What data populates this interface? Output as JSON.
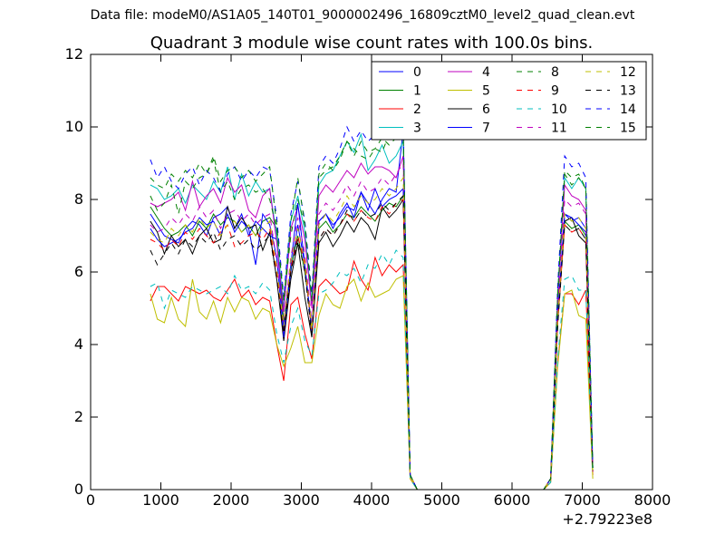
{
  "suptitle": "Data file: modeM0/AS1A05_140T01_9000002496_16809cztM0_level2_quad_clean.evt",
  "chart_data": {
    "type": "line",
    "title": "Quadrant 3 module wise count rates with 100.0s bins.",
    "xlabel": "",
    "ylabel": "",
    "x_offset_label": "+2.79223e8",
    "xlim": [
      0,
      8000
    ],
    "ylim": [
      0,
      12
    ],
    "x_ticks": [
      0,
      1000,
      2000,
      3000,
      4000,
      5000,
      6000,
      7000,
      8000
    ],
    "y_ticks": [
      0,
      2,
      4,
      6,
      8,
      10,
      12
    ],
    "grid": false,
    "legend_placement": "top-right",
    "legend_columns": 4,
    "x": [
      850,
      950,
      1050,
      1150,
      1250,
      1350,
      1450,
      1550,
      1650,
      1750,
      1850,
      1950,
      2050,
      2150,
      2250,
      2350,
      2450,
      2550,
      2650,
      2750,
      2850,
      2950,
      3050,
      3150,
      3250,
      3350,
      3450,
      3550,
      3650,
      3750,
      3850,
      3950,
      4050,
      4150,
      4250,
      4350,
      4450,
      4550,
      4650,
      4750,
      4850,
      4950,
      5050,
      5150,
      5250,
      5350,
      5450,
      5550,
      5650,
      5750,
      5850,
      5950,
      6050,
      6150,
      6250,
      6350,
      6450,
      6550,
      6650,
      6750,
      6850,
      6950,
      7050,
      7150
    ],
    "series": [
      {
        "name": "0",
        "color": "#0000ff",
        "dash": "solid",
        "values": [
          7.6,
          7.3,
          7.0,
          6.9,
          6.8,
          7.2,
          7.4,
          7.3,
          7.0,
          7.5,
          7.6,
          7.8,
          7.2,
          7.6,
          7.0,
          7.4,
          7.2,
          7.0,
          6.9,
          4.4,
          6.0,
          7.3,
          6.2,
          4.4,
          7.4,
          7.6,
          7.3,
          7.5,
          7.8,
          7.7,
          8.2,
          7.9,
          7.6,
          8.0,
          8.3,
          8.2,
          9.9,
          0.4,
          0.0,
          0.0,
          0.0,
          0.0,
          0.0,
          0.0,
          0.0,
          0.0,
          0.0,
          0.0,
          0.0,
          0.0,
          0.0,
          0.0,
          0.0,
          0.0,
          0.0,
          0.0,
          0.0,
          0.3,
          4.8,
          7.6,
          7.4,
          7.5,
          7.2,
          0.6
        ]
      },
      {
        "name": "1",
        "color": "#008000",
        "dash": "solid",
        "values": [
          7.8,
          7.5,
          7.2,
          7.0,
          7.1,
          7.3,
          7.0,
          7.4,
          7.2,
          7.6,
          7.3,
          7.5,
          7.4,
          7.1,
          7.3,
          7.0,
          7.4,
          7.5,
          7.2,
          4.6,
          6.1,
          7.0,
          6.0,
          4.5,
          7.2,
          7.4,
          7.1,
          7.3,
          7.6,
          7.5,
          7.8,
          7.6,
          7.4,
          7.7,
          7.9,
          7.8,
          8.1,
          0.4,
          0.0,
          0.0,
          0.0,
          0.0,
          0.0,
          0.0,
          0.0,
          0.0,
          0.0,
          0.0,
          0.0,
          0.0,
          0.0,
          0.0,
          0.0,
          0.0,
          0.0,
          0.0,
          0.0,
          0.3,
          4.6,
          7.4,
          7.2,
          7.3,
          7.0,
          0.5
        ]
      },
      {
        "name": "2",
        "color": "#ff0000",
        "dash": "solid",
        "values": [
          5.2,
          5.6,
          5.6,
          5.4,
          5.2,
          5.6,
          5.5,
          5.4,
          5.5,
          5.3,
          5.2,
          5.5,
          5.8,
          5.3,
          5.5,
          5.1,
          5.3,
          5.2,
          4.0,
          3.0,
          5.1,
          5.3,
          4.3,
          3.6,
          5.6,
          5.8,
          5.6,
          5.4,
          5.5,
          6.3,
          5.8,
          5.5,
          6.4,
          5.9,
          6.2,
          6.0,
          6.2,
          0.3,
          0.0,
          0.0,
          0.0,
          0.0,
          0.0,
          0.0,
          0.0,
          0.0,
          0.0,
          0.0,
          0.0,
          0.0,
          0.0,
          0.0,
          0.0,
          0.0,
          0.0,
          0.0,
          0.0,
          0.2,
          3.5,
          5.4,
          5.4,
          5.1,
          5.5,
          0.4
        ]
      },
      {
        "name": "3",
        "color": "#00bfbf",
        "dash": "solid",
        "values": [
          8.4,
          8.3,
          8.0,
          8.1,
          8.3,
          7.9,
          8.4,
          8.2,
          8.0,
          8.5,
          8.2,
          8.9,
          8.0,
          8.7,
          8.1,
          8.5,
          8.2,
          8.3,
          7.0,
          5.0,
          7.4,
          8.1,
          7.1,
          5.1,
          8.4,
          8.7,
          8.8,
          9.2,
          9.6,
          9.3,
          9.8,
          8.8,
          9.1,
          9.5,
          9.0,
          9.2,
          9.6,
          0.4,
          0.0,
          0.0,
          0.0,
          0.0,
          0.0,
          0.0,
          0.0,
          0.0,
          0.0,
          0.0,
          0.0,
          0.0,
          0.0,
          0.0,
          0.0,
          0.0,
          0.0,
          0.0,
          0.0,
          0.3,
          5.4,
          8.6,
          8.3,
          8.6,
          8.3,
          0.6
        ]
      },
      {
        "name": "4",
        "color": "#bf00bf",
        "dash": "solid",
        "values": [
          7.9,
          7.8,
          7.9,
          8.0,
          8.2,
          7.7,
          8.5,
          7.8,
          8.1,
          8.3,
          7.9,
          8.6,
          8.2,
          8.4,
          7.7,
          7.5,
          8.1,
          8.3,
          6.8,
          4.9,
          7.2,
          7.8,
          6.9,
          5.0,
          8.1,
          8.4,
          8.2,
          8.5,
          8.8,
          8.6,
          9.0,
          8.7,
          8.9,
          8.9,
          8.8,
          8.6,
          9.2,
          0.4,
          0.0,
          0.0,
          0.0,
          0.0,
          0.0,
          0.0,
          0.0,
          0.0,
          0.0,
          0.0,
          0.0,
          0.0,
          0.0,
          0.0,
          0.0,
          0.0,
          0.0,
          0.0,
          0.0,
          0.3,
          5.2,
          8.4,
          8.1,
          8.0,
          7.7,
          0.5
        ]
      },
      {
        "name": "5",
        "color": "#bfbf00",
        "dash": "solid",
        "values": [
          5.4,
          4.7,
          4.6,
          5.3,
          4.7,
          4.5,
          5.8,
          4.9,
          4.7,
          5.2,
          4.6,
          5.3,
          4.9,
          5.3,
          5.2,
          4.7,
          5.0,
          4.9,
          4.0,
          3.4,
          3.9,
          4.5,
          3.5,
          3.5,
          4.8,
          5.4,
          5.1,
          5.0,
          5.6,
          5.8,
          5.2,
          5.7,
          5.3,
          5.4,
          5.5,
          5.8,
          5.9,
          0.3,
          0.0,
          0.0,
          0.0,
          0.0,
          0.0,
          0.0,
          0.0,
          0.0,
          0.0,
          0.0,
          0.0,
          0.0,
          0.0,
          0.0,
          0.0,
          0.0,
          0.0,
          0.0,
          0.0,
          0.2,
          3.4,
          5.4,
          5.5,
          4.8,
          4.7,
          0.3
        ]
      },
      {
        "name": "6",
        "color": "#000000",
        "dash": "solid",
        "values": [
          7.4,
          7.1,
          6.5,
          7.0,
          6.7,
          6.9,
          6.5,
          7.0,
          7.2,
          6.8,
          6.9,
          7.8,
          7.2,
          7.5,
          7.2,
          7.3,
          6.6,
          7.1,
          5.8,
          4.1,
          5.8,
          6.8,
          5.3,
          4.2,
          6.8,
          7.1,
          6.7,
          7.0,
          7.4,
          7.1,
          7.5,
          7.3,
          6.9,
          7.8,
          7.5,
          7.7,
          8.0,
          0.4,
          0.0,
          0.0,
          0.0,
          0.0,
          0.0,
          0.0,
          0.0,
          0.0,
          0.0,
          0.0,
          0.0,
          0.0,
          0.0,
          0.0,
          0.0,
          0.0,
          0.0,
          0.0,
          0.0,
          0.3,
          4.6,
          7.4,
          7.5,
          7.0,
          6.8,
          0.5
        ]
      },
      {
        "name": "7",
        "color": "#0000ff",
        "dash": "solid",
        "values": [
          7.2,
          6.9,
          6.7,
          6.8,
          6.9,
          7.1,
          7.2,
          7.5,
          7.3,
          7.4,
          7.0,
          7.6,
          7.1,
          7.4,
          7.2,
          6.2,
          7.6,
          7.3,
          6.4,
          4.2,
          6.2,
          7.9,
          6.2,
          4.3,
          7.4,
          7.6,
          7.2,
          7.6,
          7.9,
          7.5,
          8.2,
          7.7,
          8.3,
          7.8,
          8.0,
          8.1,
          8.3,
          0.4,
          0.0,
          0.0,
          0.0,
          0.0,
          0.0,
          0.0,
          0.0,
          0.0,
          0.0,
          0.0,
          0.0,
          0.0,
          0.0,
          0.0,
          0.0,
          0.0,
          0.0,
          0.0,
          0.0,
          0.3,
          4.8,
          7.6,
          7.5,
          7.3,
          7.1,
          0.6
        ]
      },
      {
        "name": "8",
        "color": "#008000",
        "dash": "dashed",
        "values": [
          8.1,
          7.7,
          7.9,
          8.4,
          7.6,
          8.5,
          8.3,
          8.6,
          8.7,
          9.1,
          8.2,
          8.5,
          8.0,
          8.3,
          8.4,
          8.2,
          8.3,
          8.0,
          7.2,
          5.2,
          7.0,
          8.0,
          7.3,
          5.2,
          8.6,
          8.8,
          8.9,
          9.2,
          9.6,
          9.4,
          9.2,
          9.1,
          9.4,
          9.3,
          9.8,
          9.7,
          9.9,
          0.4,
          0.0,
          0.0,
          0.0,
          0.0,
          0.0,
          0.0,
          0.0,
          0.0,
          0.0,
          0.0,
          0.0,
          0.0,
          0.0,
          0.0,
          0.0,
          0.0,
          0.0,
          0.0,
          0.0,
          0.3,
          5.4,
          8.7,
          8.4,
          8.6,
          8.3,
          0.6
        ]
      },
      {
        "name": "9",
        "color": "#ff0000",
        "dash": "dashed",
        "values": [
          6.9,
          6.8,
          6.6,
          6.9,
          6.7,
          7.1,
          6.9,
          7.2,
          7.0,
          6.8,
          7.1,
          7.3,
          6.7,
          6.8,
          7.0,
          7.1,
          6.9,
          7.2,
          6.0,
          4.3,
          6.1,
          7.0,
          6.2,
          4.3,
          6.9,
          7.2,
          7.0,
          7.3,
          7.6,
          7.4,
          7.7,
          7.5,
          7.4,
          7.8,
          7.6,
          7.9,
          8.0,
          0.4,
          0.0,
          0.0,
          0.0,
          0.0,
          0.0,
          0.0,
          0.0,
          0.0,
          0.0,
          0.0,
          0.0,
          0.0,
          0.0,
          0.0,
          0.0,
          0.0,
          0.0,
          0.0,
          0.0,
          0.3,
          4.6,
          7.3,
          7.1,
          7.2,
          6.9,
          0.5
        ]
      },
      {
        "name": "10",
        "color": "#00bfbf",
        "dash": "dashed",
        "values": [
          5.6,
          5.7,
          5.0,
          5.5,
          5.4,
          5.3,
          5.6,
          5.5,
          5.4,
          5.5,
          5.6,
          5.4,
          5.9,
          5.5,
          5.6,
          5.4,
          5.7,
          5.5,
          4.3,
          3.5,
          4.5,
          5.0,
          4.1,
          3.7,
          5.4,
          5.5,
          5.7,
          6.0,
          5.9,
          6.1,
          5.7,
          6.2,
          6.1,
          6.5,
          6.2,
          6.6,
          6.4,
          0.3,
          0.0,
          0.0,
          0.0,
          0.0,
          0.0,
          0.0,
          0.0,
          0.0,
          0.0,
          0.0,
          0.0,
          0.0,
          0.0,
          0.0,
          0.0,
          0.0,
          0.0,
          0.0,
          0.0,
          0.2,
          3.6,
          5.8,
          5.9,
          5.5,
          5.5,
          0.4
        ]
      },
      {
        "name": "11",
        "color": "#bf00bf",
        "dash": "dashed",
        "values": [
          7.3,
          7.1,
          7.2,
          7.5,
          7.3,
          7.6,
          7.4,
          7.8,
          7.5,
          7.7,
          7.2,
          7.6,
          7.7,
          7.4,
          7.6,
          7.3,
          7.5,
          7.6,
          6.3,
          4.6,
          6.4,
          7.5,
          6.5,
          4.6,
          7.6,
          7.9,
          7.7,
          8.0,
          8.4,
          8.1,
          8.5,
          8.2,
          8.3,
          8.6,
          8.4,
          8.7,
          9.0,
          0.4,
          0.0,
          0.0,
          0.0,
          0.0,
          0.0,
          0.0,
          0.0,
          0.0,
          0.0,
          0.0,
          0.0,
          0.0,
          0.0,
          0.0,
          0.0,
          0.0,
          0.0,
          0.0,
          0.0,
          0.3,
          5.0,
          8.0,
          7.8,
          7.9,
          7.6,
          0.5
        ]
      },
      {
        "name": "12",
        "color": "#bfbf00",
        "dash": "dashed",
        "values": [
          7.1,
          6.9,
          6.8,
          7.2,
          7.0,
          7.3,
          7.1,
          7.5,
          7.2,
          7.4,
          7.0,
          7.3,
          7.4,
          7.1,
          7.3,
          7.0,
          7.2,
          7.4,
          6.1,
          4.5,
          6.3,
          7.2,
          6.3,
          4.4,
          7.3,
          7.6,
          7.4,
          7.7,
          8.1,
          7.8,
          8.1,
          7.9,
          8.0,
          8.3,
          8.1,
          8.3,
          8.6,
          0.4,
          0.0,
          0.0,
          0.0,
          0.0,
          0.0,
          0.0,
          0.0,
          0.0,
          0.0,
          0.0,
          0.0,
          0.0,
          0.0,
          0.0,
          0.0,
          0.0,
          0.0,
          0.0,
          0.0,
          0.3,
          4.7,
          7.6,
          7.4,
          7.5,
          7.2,
          0.5
        ]
      },
      {
        "name": "13",
        "color": "#000000",
        "dash": "dashed",
        "values": [
          6.6,
          6.2,
          6.5,
          6.8,
          6.5,
          6.9,
          6.7,
          7.0,
          6.8,
          7.1,
          6.6,
          6.9,
          7.0,
          6.7,
          6.9,
          6.6,
          6.8,
          7.0,
          5.8,
          4.3,
          6.0,
          6.9,
          6.0,
          4.2,
          6.9,
          7.2,
          7.0,
          7.3,
          7.7,
          7.4,
          7.7,
          7.5,
          7.6,
          7.9,
          7.7,
          7.9,
          8.1,
          0.4,
          0.0,
          0.0,
          0.0,
          0.0,
          0.0,
          0.0,
          0.0,
          0.0,
          0.0,
          0.0,
          0.0,
          0.0,
          0.0,
          0.0,
          0.0,
          0.0,
          0.0,
          0.0,
          0.0,
          0.3,
          4.5,
          7.3,
          7.1,
          7.2,
          6.9,
          0.5
        ]
      },
      {
        "name": "14",
        "color": "#0000ff",
        "dash": "dashed",
        "values": [
          9.1,
          8.6,
          8.9,
          8.5,
          8.3,
          8.7,
          8.9,
          8.4,
          8.8,
          8.6,
          8.2,
          8.7,
          8.9,
          8.5,
          8.8,
          8.6,
          8.9,
          8.8,
          7.5,
          5.3,
          7.6,
          8.5,
          7.4,
          5.4,
          8.9,
          9.2,
          9.0,
          9.4,
          10.0,
          9.6,
          9.9,
          9.6,
          9.8,
          10.0,
          9.7,
          10.0,
          10.1,
          0.4,
          0.0,
          0.0,
          0.0,
          0.0,
          0.0,
          0.0,
          0.0,
          0.0,
          0.0,
          0.0,
          0.0,
          0.0,
          0.0,
          0.0,
          0.0,
          0.0,
          0.0,
          0.0,
          0.0,
          0.3,
          5.6,
          9.2,
          8.9,
          9.0,
          8.6,
          0.6
        ]
      },
      {
        "name": "15",
        "color": "#008000",
        "dash": "dashed",
        "values": [
          8.6,
          8.4,
          8.3,
          8.7,
          8.5,
          8.8,
          8.6,
          9.0,
          8.7,
          9.2,
          8.5,
          8.8,
          8.9,
          8.6,
          8.8,
          8.5,
          8.7,
          8.9,
          7.3,
          5.2,
          7.4,
          8.6,
          7.3,
          5.3,
          8.7,
          9.0,
          8.8,
          9.1,
          9.6,
          9.2,
          9.6,
          9.3,
          9.4,
          9.7,
          9.5,
          9.7,
          9.9,
          0.4,
          0.0,
          0.0,
          0.0,
          0.0,
          0.0,
          0.0,
          0.0,
          0.0,
          0.0,
          0.0,
          0.0,
          0.0,
          0.0,
          0.0,
          0.0,
          0.0,
          0.0,
          0.0,
          0.0,
          0.3,
          5.3,
          8.8,
          8.6,
          8.7,
          8.3,
          0.6
        ]
      }
    ]
  }
}
